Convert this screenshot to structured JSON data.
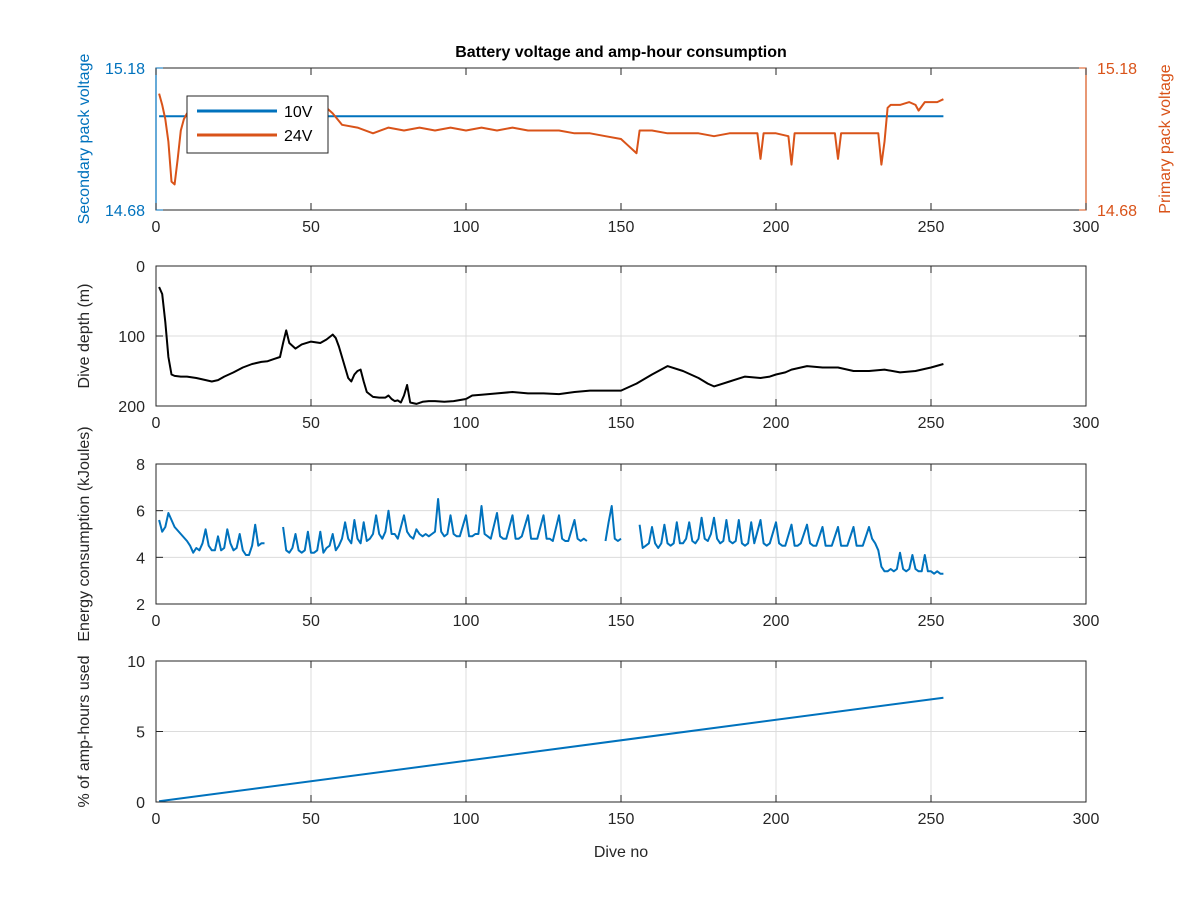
{
  "figure": {
    "title": "Battery voltage and amp-hour consumption"
  },
  "chart_data": [
    {
      "type": "line",
      "title": "Battery voltage and amp-hour consumption",
      "xlabel": "",
      "ylabel": "Secondary pack voltage",
      "ylabel_right": "Primary pack voltage",
      "xlim": [
        0,
        300
      ],
      "ylim": [
        14.68,
        15.18
      ],
      "ylim_right": [
        14.68,
        15.18
      ],
      "xticks": [
        0,
        50,
        100,
        150,
        200,
        250,
        300
      ],
      "yticks": [
        14.68,
        15.18
      ],
      "yticks_right": [
        14.68,
        15.18
      ],
      "ytick_labels": [
        "14.68",
        "15.18"
      ],
      "ytick_labels_right": [
        "14.68",
        "15.18"
      ],
      "grid": false,
      "legend": "top-left",
      "series": [
        {
          "name": "10V",
          "axis": "left",
          "color": "#0072BD",
          "x": [
            1,
            254
          ],
          "y": [
            15.01,
            15.01
          ]
        },
        {
          "name": "24V",
          "axis": "right",
          "color": "#D95319",
          "x": [
            1,
            2,
            3,
            4,
            5,
            6,
            7,
            8,
            9,
            10,
            12,
            15,
            20,
            25,
            30,
            35,
            40,
            45,
            50,
            53,
            55,
            57,
            60,
            65,
            70,
            75,
            80,
            85,
            90,
            95,
            100,
            105,
            110,
            115,
            120,
            125,
            130,
            135,
            140,
            145,
            150,
            152,
            155,
            156,
            160,
            165,
            170,
            175,
            180,
            185,
            190,
            194,
            195,
            196,
            200,
            204,
            205,
            206,
            210,
            215,
            219,
            220,
            221,
            225,
            230,
            233,
            234,
            235,
            236,
            237,
            240,
            243,
            245,
            246,
            248,
            250,
            252,
            254
          ],
          "y": [
            15.09,
            15.05,
            15.0,
            14.92,
            14.78,
            14.77,
            14.86,
            14.96,
            15.0,
            15.02,
            15.02,
            15.02,
            15.02,
            15.02,
            15.02,
            15.02,
            15.02,
            15.02,
            15.03,
            15.03,
            15.04,
            15.02,
            14.98,
            14.97,
            14.95,
            14.97,
            14.96,
            14.97,
            14.96,
            14.97,
            14.96,
            14.97,
            14.96,
            14.97,
            14.96,
            14.96,
            14.96,
            14.95,
            14.95,
            14.94,
            14.93,
            14.91,
            14.88,
            14.96,
            14.96,
            14.95,
            14.95,
            14.95,
            14.94,
            14.95,
            14.95,
            14.95,
            14.86,
            14.95,
            14.95,
            14.94,
            14.84,
            14.95,
            14.95,
            14.95,
            14.95,
            14.86,
            14.95,
            14.95,
            14.95,
            14.95,
            14.84,
            14.92,
            15.04,
            15.05,
            15.05,
            15.06,
            15.05,
            15.03,
            15.06,
            15.06,
            15.06,
            15.07
          ]
        }
      ]
    },
    {
      "type": "line",
      "xlabel": "",
      "ylabel": "Dive depth (m)",
      "xlim": [
        0,
        300
      ],
      "ylim": [
        0,
        200
      ],
      "y_reversed": true,
      "xticks": [
        0,
        50,
        100,
        150,
        200,
        250,
        300
      ],
      "yticks": [
        0,
        100,
        200
      ],
      "grid": true,
      "series": [
        {
          "color": "#000000",
          "x": [
            1,
            2,
            3,
            4,
            5,
            6,
            8,
            10,
            13,
            15,
            18,
            20,
            22,
            25,
            28,
            31,
            34,
            36,
            38,
            40,
            41,
            42,
            43,
            45,
            47,
            50,
            53,
            55,
            57,
            58,
            59,
            60,
            61,
            62,
            63,
            64,
            65,
            66,
            67,
            68,
            70,
            72,
            74,
            75,
            76,
            77,
            78,
            79,
            80,
            81,
            82,
            84,
            86,
            88,
            90,
            93,
            96,
            100,
            102,
            105,
            110,
            115,
            120,
            125,
            130,
            135,
            140,
            145,
            150,
            155,
            160,
            165,
            170,
            175,
            178,
            180,
            185,
            190,
            195,
            198,
            200,
            203,
            205,
            210,
            215,
            220,
            225,
            230,
            235,
            240,
            245,
            250,
            254
          ],
          "y": [
            30,
            40,
            80,
            130,
            155,
            157,
            158,
            158,
            160,
            162,
            165,
            163,
            158,
            152,
            145,
            140,
            137,
            136,
            133,
            130,
            110,
            92,
            110,
            118,
            112,
            108,
            110,
            105,
            98,
            103,
            115,
            130,
            145,
            160,
            165,
            155,
            150,
            148,
            165,
            180,
            187,
            188,
            188,
            185,
            190,
            193,
            192,
            195,
            185,
            170,
            195,
            197,
            194,
            193,
            193,
            194,
            193,
            190,
            185,
            184,
            182,
            180,
            182,
            182,
            183,
            180,
            178,
            178,
            178,
            168,
            155,
            143,
            150,
            160,
            168,
            172,
            165,
            158,
            160,
            158,
            155,
            152,
            148,
            143,
            145,
            145,
            150,
            150,
            148,
            152,
            150,
            145,
            140
          ]
        }
      ]
    },
    {
      "type": "line",
      "xlabel": "",
      "ylabel": "Energy consumption (kJoules)",
      "xlim": [
        0,
        300
      ],
      "ylim": [
        2,
        8
      ],
      "xticks": [
        0,
        50,
        100,
        150,
        200,
        250,
        300
      ],
      "yticks": [
        2,
        4,
        6,
        8
      ],
      "grid": true,
      "series": [
        {
          "color": "#0072BD",
          "segments": [
            {
              "x": [
                1,
                2,
                3,
                4,
                5,
                6,
                8,
                10,
                11,
                12,
                13,
                14,
                15,
                16,
                17,
                18,
                19,
                20,
                21,
                22,
                23,
                24,
                25,
                26,
                27,
                28,
                29,
                30,
                31,
                32,
                33,
                34,
                35
              ],
              "y": [
                5.6,
                5.1,
                5.3,
                5.9,
                5.6,
                5.3,
                5.0,
                4.7,
                4.5,
                4.2,
                4.4,
                4.3,
                4.6,
                5.2,
                4.5,
                4.3,
                4.3,
                4.9,
                4.3,
                4.4,
                5.2,
                4.6,
                4.3,
                4.4,
                5.0,
                4.3,
                4.1,
                4.1,
                4.5,
                5.4,
                4.5,
                4.6,
                4.6
              ]
            },
            {
              "x": [
                41,
                42,
                43,
                44,
                45,
                46,
                47,
                48,
                49,
                50,
                51,
                52,
                53,
                54,
                55,
                56,
                57,
                58,
                59,
                60,
                61,
                62,
                63,
                64,
                65,
                66,
                67,
                68,
                69,
                70,
                71,
                72,
                73,
                74,
                75,
                76,
                77,
                78,
                80,
                81,
                82,
                83,
                84,
                85,
                86,
                87,
                88,
                89,
                90,
                91,
                92,
                93,
                94,
                95,
                96,
                97,
                98,
                100,
                101,
                102,
                103,
                104,
                105,
                106,
                107,
                108,
                110,
                111,
                112,
                113,
                115,
                116,
                117,
                118,
                120,
                121,
                122,
                123,
                125,
                126,
                127,
                128,
                130,
                131,
                132,
                133,
                135,
                136,
                137,
                138,
                139
              ],
              "y": [
                5.3,
                4.3,
                4.2,
                4.4,
                5.0,
                4.3,
                4.2,
                4.3,
                5.1,
                4.2,
                4.2,
                4.3,
                5.1,
                4.2,
                4.4,
                4.5,
                5.0,
                4.3,
                4.5,
                4.8,
                5.5,
                4.8,
                4.6,
                5.6,
                4.8,
                4.6,
                5.5,
                4.7,
                4.8,
                5.0,
                5.8,
                5.0,
                4.8,
                5.1,
                6.0,
                5.0,
                5.0,
                4.8,
                5.8,
                5.1,
                4.9,
                4.8,
                5.2,
                5.0,
                4.9,
                5.0,
                4.9,
                5.0,
                5.1,
                6.5,
                5.1,
                4.9,
                5.0,
                5.8,
                5.0,
                4.9,
                4.9,
                5.8,
                4.9,
                4.9,
                5.0,
                5.0,
                6.2,
                5.0,
                4.9,
                4.8,
                5.9,
                4.9,
                4.8,
                4.8,
                5.8,
                4.8,
                4.8,
                4.9,
                5.8,
                4.8,
                4.8,
                4.8,
                5.8,
                4.8,
                4.8,
                4.7,
                5.8,
                4.8,
                4.7,
                4.7,
                5.6,
                4.8,
                4.7,
                4.8,
                4.7
              ]
            },
            {
              "x": [
                145,
                146,
                147,
                148,
                149,
                150
              ],
              "y": [
                4.7,
                5.5,
                6.2,
                4.8,
                4.7,
                4.8
              ]
            },
            {
              "x": [
                156,
                157,
                158,
                159,
                160,
                161,
                162,
                163,
                164,
                165,
                166,
                167,
                168,
                169,
                170,
                171,
                172,
                173,
                174,
                175,
                176,
                177,
                178,
                179,
                180,
                181,
                182,
                183,
                184,
                185,
                186,
                187,
                188,
                189,
                190,
                191,
                192,
                193,
                195,
                196,
                197,
                198,
                200,
                201,
                202,
                203,
                205,
                206,
                207,
                208,
                210,
                211,
                212,
                213,
                215,
                216,
                217,
                218,
                220,
                221,
                222,
                223,
                225,
                226,
                227,
                228,
                230,
                231,
                232,
                233,
                234,
                235,
                236,
                237,
                238,
                239,
                240,
                241,
                242,
                243,
                244,
                245,
                246,
                247,
                248,
                249,
                250,
                251,
                252,
                253,
                254
              ],
              "y": [
                5.4,
                4.4,
                4.5,
                4.6,
                5.3,
                4.6,
                4.4,
                4.6,
                5.4,
                4.6,
                4.5,
                4.6,
                5.5,
                4.6,
                4.6,
                4.8,
                5.5,
                4.7,
                4.6,
                4.8,
                5.7,
                4.8,
                4.7,
                5.0,
                5.7,
                4.8,
                4.6,
                4.7,
                5.6,
                4.7,
                4.6,
                4.7,
                5.6,
                4.6,
                4.5,
                4.6,
                5.5,
                4.6,
                5.6,
                4.6,
                4.5,
                4.6,
                5.5,
                4.6,
                4.5,
                4.5,
                5.4,
                4.5,
                4.5,
                4.6,
                5.4,
                4.6,
                4.5,
                4.5,
                5.3,
                4.5,
                4.5,
                4.5,
                5.3,
                4.5,
                4.5,
                4.5,
                5.3,
                4.5,
                4.5,
                4.5,
                5.3,
                4.8,
                4.6,
                4.3,
                3.6,
                3.4,
                3.4,
                3.5,
                3.4,
                3.5,
                4.2,
                3.5,
                3.4,
                3.5,
                4.1,
                3.5,
                3.4,
                3.4,
                4.1,
                3.4,
                3.4,
                3.3,
                3.4,
                3.3,
                3.3
              ]
            }
          ]
        }
      ]
    },
    {
      "type": "line",
      "xlabel": "Dive no",
      "ylabel": "% of amp-hours used",
      "xlim": [
        0,
        300
      ],
      "ylim": [
        0,
        10
      ],
      "xticks": [
        0,
        50,
        100,
        150,
        200,
        250,
        300
      ],
      "yticks": [
        0,
        5,
        10
      ],
      "grid": true,
      "series": [
        {
          "color": "#0072BD",
          "x": [
            1,
            254
          ],
          "y": [
            0.05,
            7.4
          ]
        }
      ]
    }
  ]
}
